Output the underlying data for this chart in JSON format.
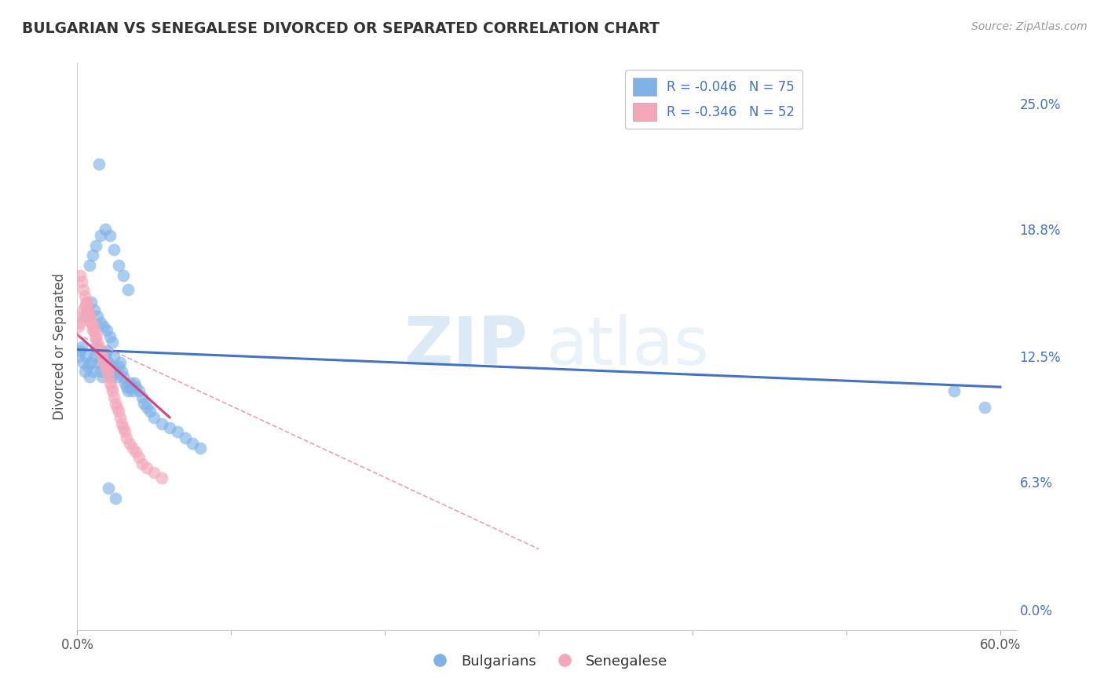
{
  "title": "BULGARIAN VS SENEGALESE DIVORCED OR SEPARATED CORRELATION CHART",
  "source_text": "Source: ZipAtlas.com",
  "ylabel": "Divorced or Separated",
  "watermark_zip": "ZIP",
  "watermark_atlas": "atlas",
  "legend_text": [
    "R = -0.046   N = 75",
    "R = -0.346   N = 52"
  ],
  "xlim": [
    0.0,
    0.61
  ],
  "ylim": [
    -0.01,
    0.27
  ],
  "y_ticks": [
    0.0,
    0.063,
    0.125,
    0.188,
    0.25
  ],
  "y_tick_labels_right": [
    "0.0%",
    "6.3%",
    "12.5%",
    "18.8%",
    "25.0%"
  ],
  "x_tick_labels": [
    "0.0%",
    "60.0%"
  ],
  "x_tick_positions": [
    0.0,
    0.6
  ],
  "blue_color": "#7EB3E8",
  "pink_color": "#F4A7B9",
  "blue_line_color": "#4472C4",
  "pink_line_color": "#D94080",
  "pink_dashed_color": "#E8A0B8",
  "background_color": "#FFFFFF",
  "grid_color": "#CCCCCC",
  "bulgarians_x": [
    0.001,
    0.002,
    0.003,
    0.004,
    0.005,
    0.006,
    0.007,
    0.008,
    0.009,
    0.01,
    0.011,
    0.012,
    0.013,
    0.014,
    0.015,
    0.016,
    0.017,
    0.018,
    0.019,
    0.02,
    0.021,
    0.022,
    0.023,
    0.024,
    0.025,
    0.026,
    0.027,
    0.028,
    0.029,
    0.03,
    0.031,
    0.032,
    0.033,
    0.034,
    0.035,
    0.036,
    0.037,
    0.038,
    0.04,
    0.042,
    0.043,
    0.045,
    0.047,
    0.05,
    0.055,
    0.06,
    0.065,
    0.07,
    0.075,
    0.08,
    0.008,
    0.01,
    0.012,
    0.015,
    0.018,
    0.021,
    0.024,
    0.027,
    0.03,
    0.033,
    0.005,
    0.007,
    0.009,
    0.011,
    0.013,
    0.015,
    0.017,
    0.019,
    0.021,
    0.023,
    0.014,
    0.02,
    0.025,
    0.57,
    0.59
  ],
  "bulgarians_y": [
    0.125,
    0.128,
    0.13,
    0.122,
    0.118,
    0.125,
    0.12,
    0.115,
    0.122,
    0.118,
    0.125,
    0.13,
    0.128,
    0.122,
    0.118,
    0.115,
    0.12,
    0.125,
    0.128,
    0.122,
    0.118,
    0.115,
    0.12,
    0.125,
    0.118,
    0.115,
    0.12,
    0.122,
    0.118,
    0.115,
    0.112,
    0.11,
    0.108,
    0.112,
    0.11,
    0.108,
    0.112,
    0.11,
    0.108,
    0.105,
    0.102,
    0.1,
    0.098,
    0.095,
    0.092,
    0.09,
    0.088,
    0.085,
    0.082,
    0.08,
    0.17,
    0.175,
    0.18,
    0.185,
    0.188,
    0.185,
    0.178,
    0.17,
    0.165,
    0.158,
    0.145,
    0.148,
    0.152,
    0.148,
    0.145,
    0.142,
    0.14,
    0.138,
    0.135,
    0.132,
    0.22,
    0.06,
    0.055,
    0.108,
    0.1
  ],
  "senegalese_x": [
    0.001,
    0.002,
    0.003,
    0.004,
    0.005,
    0.006,
    0.007,
    0.008,
    0.009,
    0.01,
    0.011,
    0.012,
    0.013,
    0.014,
    0.015,
    0.016,
    0.017,
    0.018,
    0.019,
    0.02,
    0.021,
    0.022,
    0.023,
    0.024,
    0.025,
    0.026,
    0.027,
    0.028,
    0.029,
    0.03,
    0.031,
    0.032,
    0.034,
    0.036,
    0.038,
    0.04,
    0.042,
    0.045,
    0.05,
    0.055,
    0.002,
    0.003,
    0.004,
    0.005,
    0.006,
    0.007,
    0.008,
    0.009,
    0.01,
    0.012,
    0.015,
    0.02
  ],
  "senegalese_y": [
    0.14,
    0.142,
    0.145,
    0.148,
    0.15,
    0.152,
    0.148,
    0.145,
    0.142,
    0.14,
    0.138,
    0.135,
    0.132,
    0.13,
    0.128,
    0.125,
    0.122,
    0.12,
    0.118,
    0.115,
    0.112,
    0.11,
    0.108,
    0.105,
    0.102,
    0.1,
    0.098,
    0.095,
    0.092,
    0.09,
    0.088,
    0.085,
    0.082,
    0.08,
    0.078,
    0.075,
    0.072,
    0.07,
    0.068,
    0.065,
    0.165,
    0.162,
    0.158,
    0.155,
    0.152,
    0.148,
    0.145,
    0.142,
    0.138,
    0.135,
    0.128,
    0.118
  ],
  "blue_trend_x": [
    0.0,
    0.6
  ],
  "blue_trend_y": [
    0.1285,
    0.11
  ],
  "pink_solid_trend_x": [
    0.0,
    0.06
  ],
  "pink_solid_trend_y": [
    0.136,
    0.095
  ],
  "pink_dashed_trend_x": [
    0.0,
    0.3
  ],
  "pink_dashed_trend_y": [
    0.136,
    0.03
  ]
}
